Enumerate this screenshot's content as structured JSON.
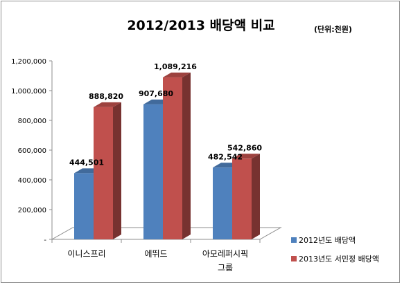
{
  "chart_data": {
    "type": "bar",
    "title": "2012/2013 배당액 비교",
    "unit_note": "(단위:천원)",
    "categories": [
      [
        "이니스프리"
      ],
      [
        "에뛰드"
      ],
      [
        "아모레퍼시픽",
        "그룹"
      ]
    ],
    "series": [
      {
        "name": "2012년도 배당액",
        "values": [
          444501,
          907680,
          482542
        ],
        "labels": [
          "444,501",
          "907,680",
          "482,542"
        ],
        "color": "#4f81bd"
      },
      {
        "name": "2013년도 서민정 배당액",
        "values": [
          888820,
          1089216,
          542860
        ],
        "labels": [
          "888,820",
          "1,089,216",
          "542,860"
        ],
        "color": "#c0504d"
      }
    ],
    "ylim": [
      0,
      1200000
    ],
    "yticks": [
      "-",
      "200,000",
      "400,000",
      "600,000",
      "800,000",
      "1,000,000",
      "1,200,000"
    ],
    "grid": false,
    "legend": "right",
    "xlabel": "",
    "ylabel": ""
  }
}
